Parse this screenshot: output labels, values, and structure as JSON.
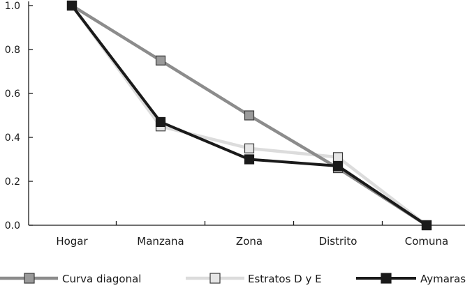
{
  "chart_data": {
    "type": "line",
    "title": "",
    "xlabel": "",
    "ylabel": "",
    "categories": [
      "Hogar",
      "Manzana",
      "Zona",
      "Distrito",
      "Comuna"
    ],
    "ylim": [
      0,
      1
    ],
    "yticks": [
      "0.0",
      "0.2",
      "0.4",
      "0.6",
      "0.8",
      "1.0"
    ],
    "ytick_values": [
      0,
      0.2,
      0.4,
      0.6,
      0.8,
      1.0
    ],
    "grid": false,
    "legend_position": "bottom",
    "series": [
      {
        "name": "Curva diagonal",
        "values": [
          1.0,
          0.75,
          0.5,
          0.26,
          0.0
        ],
        "line_color": "#8c8c8c",
        "marker_fill": "#9a9a9a",
        "marker_stroke": "#3a3a3a"
      },
      {
        "name": "Estratos D y E",
        "values": [
          1.0,
          0.45,
          0.35,
          0.31,
          0.0
        ],
        "line_color": "#dcdcdc",
        "marker_fill": "#e6e6e6",
        "marker_stroke": "#3a3a3a"
      },
      {
        "name": "Aymaras",
        "values": [
          1.0,
          0.47,
          0.3,
          0.27,
          0.0
        ],
        "line_color": "#1a1a1a",
        "marker_fill": "#1a1a1a",
        "marker_stroke": "#1a1a1a"
      }
    ]
  }
}
